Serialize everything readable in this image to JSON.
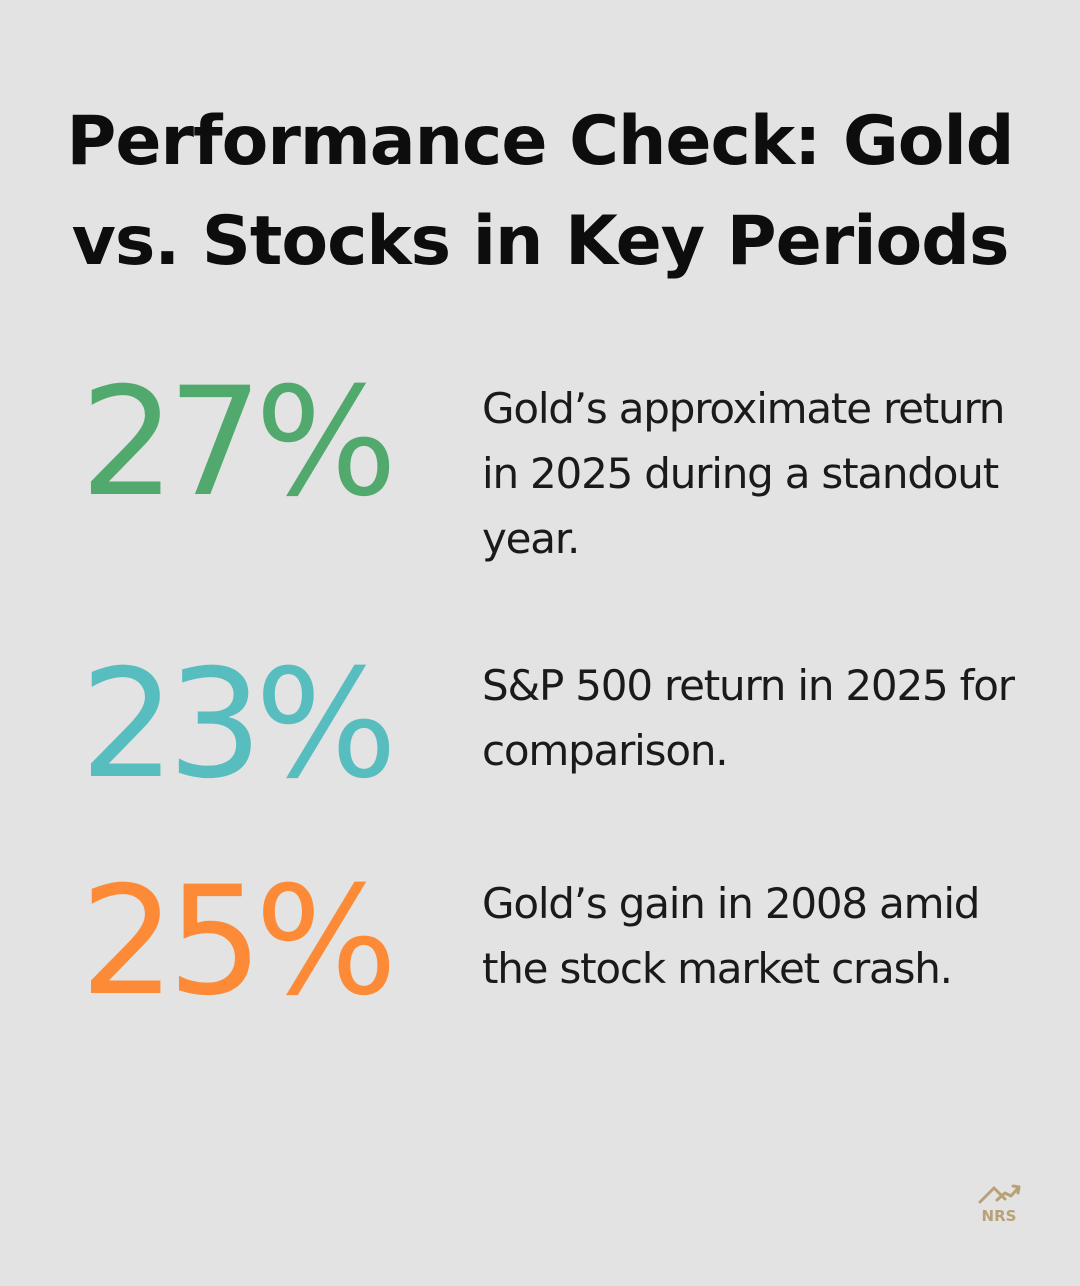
{
  "title": "Performance Check: Gold vs. Stocks in Key Periods",
  "stats": [
    {
      "value": "27%",
      "description": "Gold’s approximate return in 2025 during a standout year.",
      "color": "#52a96e"
    },
    {
      "value": "23%",
      "description": "S&P 500 return in 2025 for comparison.",
      "color": "#58bdbf"
    },
    {
      "value": "25%",
      "description": "Gold’s gain in 2008 amid the stock market crash.",
      "color": "#fd8a36"
    }
  ],
  "logo": {
    "text": "NRS",
    "color": "#b8a177"
  }
}
